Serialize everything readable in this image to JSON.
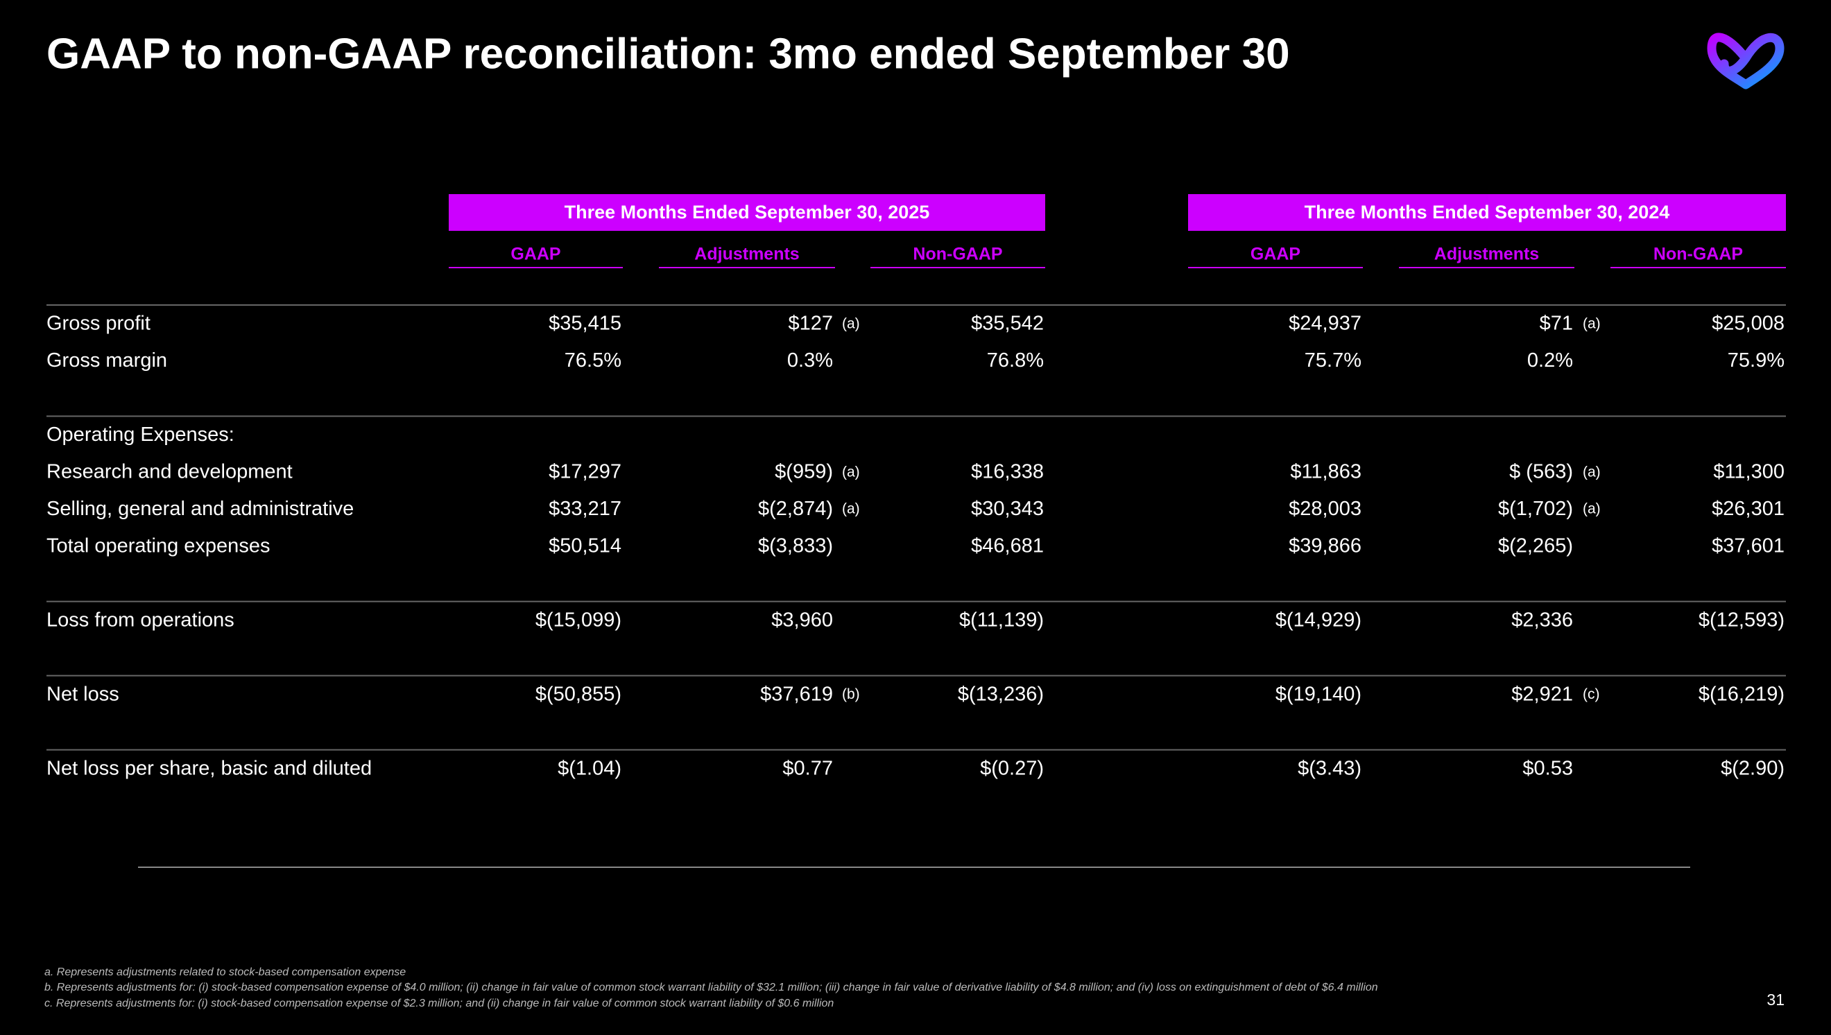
{
  "title": "GAAP to non-GAAP reconciliation: 3mo ended September 30",
  "table": {
    "periods": [
      "Three Months Ended September 30, 2025",
      "Three Months Ended September 30, 2024"
    ],
    "columns": [
      "GAAP",
      "Adjustments",
      "Non-GAAP",
      "GAAP",
      "Adjustments",
      "Non-GAAP"
    ],
    "groups": [
      [
        {
          "label": "Gross profit",
          "cells": [
            "$35,415",
            "$127",
            "$35,542",
            "$24,937",
            "$71",
            "$25,008"
          ],
          "notes": [
            "(a)",
            "(a)"
          ]
        },
        {
          "label": "Gross margin",
          "cells": [
            "76.5%",
            "0.3%",
            "76.8%",
            "75.7%",
            "0.2%",
            "75.9%"
          ]
        }
      ],
      [
        {
          "label": "Operating Expenses:"
        },
        {
          "label": "Research and development",
          "cells": [
            "$17,297",
            "$(959)",
            "$16,338",
            "$11,863",
            "$ (563)",
            "$11,300"
          ],
          "notes": [
            "(a)",
            "(a)"
          ]
        },
        {
          "label": "Selling, general and administrative",
          "cells": [
            "$33,217",
            "$(2,874)",
            "$30,343",
            "$28,003",
            "$(1,702)",
            "$26,301"
          ],
          "notes": [
            "(a)",
            "(a)"
          ]
        },
        {
          "label": "Total operating expenses",
          "cells": [
            "$50,514",
            "$(3,833)",
            "$46,681",
            "$39,866",
            "$(2,265)",
            "$37,601"
          ]
        }
      ],
      [
        {
          "label": "Loss from operations",
          "cells": [
            "$(15,099)",
            "$3,960",
            "$(11,139)",
            "$(14,929)",
            "$2,336",
            "$(12,593)"
          ]
        }
      ],
      [
        {
          "label": "Net loss",
          "cells": [
            "$(50,855)",
            "$37,619",
            "$(13,236)",
            "$(19,140)",
            "$2,921",
            "$(16,219)"
          ],
          "notes": [
            "(b)",
            "(c)"
          ]
        }
      ],
      [
        {
          "label": "Net loss per share, basic and diluted",
          "cells": [
            "$(1.04)",
            "$0.77",
            "$(0.27)",
            "$(3.43)",
            "$0.53",
            "$(2.90)"
          ]
        }
      ]
    ]
  },
  "footnotes": [
    "a. Represents adjustments related to stock-based compensation expense",
    "b. Represents adjustments for: (i) stock-based compensation expense of $4.0 million; (ii) change in fair value of common stock warrant liability of $32.1 million; (iii) change in fair value of derivative liability of $4.8 million; and (iv) loss on extinguishment of debt of $6.4 million",
    "c. Represents adjustments for: (i) stock-based compensation expense of $2.3 million; and (ii) change in fair value of common stock warrant liability of $0.6 million"
  ],
  "page_number": "31"
}
